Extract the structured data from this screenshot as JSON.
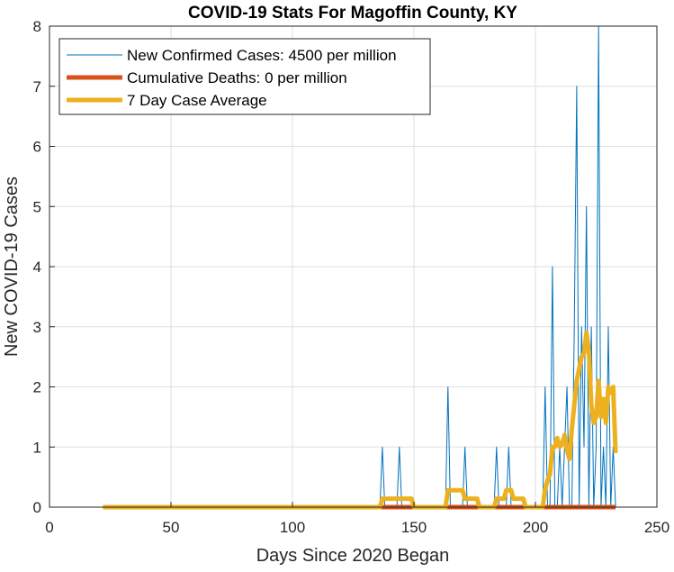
{
  "colors": {
    "new_cases": "#0072BD",
    "deaths": "#D95319",
    "avg": "#EDB120",
    "axis": "#262626",
    "grid": "#dfdfdf"
  },
  "chart_data": {
    "type": "line",
    "title": "COVID-19 Stats For Magoffin County, KY",
    "xlabel": "Days Since 2020 Began",
    "ylabel": "New COVID-19 Cases",
    "xlim": [
      0,
      250
    ],
    "ylim": [
      0,
      8
    ],
    "xticks": [
      0,
      50,
      100,
      150,
      200,
      250
    ],
    "yticks": [
      0,
      1,
      2,
      3,
      4,
      5,
      6,
      7,
      8
    ],
    "grid": true,
    "legend_position": "top-left",
    "series": [
      {
        "name": "New Confirmed Cases: 4500 per million",
        "color_key": "new_cases",
        "style": "thin",
        "points": [
          [
            22,
            0
          ],
          [
            136,
            0
          ],
          [
            137,
            1
          ],
          [
            138,
            0
          ],
          [
            143,
            0
          ],
          [
            144,
            1
          ],
          [
            145,
            0
          ],
          [
            163,
            0
          ],
          [
            164,
            2
          ],
          [
            165,
            0
          ],
          [
            170,
            0
          ],
          [
            171,
            1
          ],
          [
            172,
            0
          ],
          [
            183,
            0
          ],
          [
            184,
            1
          ],
          [
            185,
            0
          ],
          [
            188,
            0
          ],
          [
            189,
            1
          ],
          [
            190,
            0
          ],
          [
            203,
            0
          ],
          [
            204,
            2
          ],
          [
            205,
            0
          ],
          [
            206,
            0
          ],
          [
            207,
            4
          ],
          [
            208,
            0
          ],
          [
            209,
            0
          ],
          [
            210,
            1
          ],
          [
            211,
            0
          ],
          [
            212,
            1
          ],
          [
            213,
            2
          ],
          [
            214,
            0
          ],
          [
            215,
            0
          ],
          [
            216,
            3
          ],
          [
            217,
            7
          ],
          [
            218,
            0
          ],
          [
            219,
            3
          ],
          [
            220,
            1
          ],
          [
            221,
            5
          ],
          [
            222,
            0
          ],
          [
            223,
            3
          ],
          [
            224,
            0
          ],
          [
            225,
            1
          ],
          [
            226,
            8
          ],
          [
            227,
            0
          ],
          [
            228,
            1
          ],
          [
            229,
            0
          ],
          [
            230,
            3
          ],
          [
            231,
            0
          ],
          [
            232,
            1
          ],
          [
            233,
            0
          ]
        ]
      },
      {
        "name": "Cumulative Deaths: 0 per million",
        "color_key": "deaths",
        "style": "thick",
        "points": [
          [
            136,
            0
          ],
          [
            233,
            0
          ]
        ]
      },
      {
        "name": "7 Day Case Average",
        "color_key": "avg",
        "style": "thick",
        "points": [
          [
            22,
            0
          ],
          [
            136,
            0
          ],
          [
            137,
            0.14
          ],
          [
            149,
            0.14
          ],
          [
            150,
            0
          ],
          [
            163,
            0
          ],
          [
            164,
            0.28
          ],
          [
            170,
            0.28
          ],
          [
            171,
            0.14
          ],
          [
            176,
            0.14
          ],
          [
            177,
            0
          ],
          [
            183,
            0
          ],
          [
            184,
            0.14
          ],
          [
            187,
            0.14
          ],
          [
            188,
            0.28
          ],
          [
            190,
            0.28
          ],
          [
            191,
            0.14
          ],
          [
            195,
            0.14
          ],
          [
            196,
            0
          ],
          [
            203,
            0
          ],
          [
            204,
            0.3
          ],
          [
            205,
            0.45
          ],
          [
            206,
            0.55
          ],
          [
            207,
            1.0
          ],
          [
            208,
            1.0
          ],
          [
            209,
            1.15
          ],
          [
            210,
            1.0
          ],
          [
            211,
            1.05
          ],
          [
            212,
            1.2
          ],
          [
            213,
            0.95
          ],
          [
            214,
            0.8
          ],
          [
            215,
            1.3
          ],
          [
            216,
            1.7
          ],
          [
            217,
            2.1
          ],
          [
            218,
            2.3
          ],
          [
            219,
            2.5
          ],
          [
            220,
            2.55
          ],
          [
            221,
            2.9
          ],
          [
            222,
            2.6
          ],
          [
            223,
            1.7
          ],
          [
            224,
            1.4
          ],
          [
            225,
            1.5
          ],
          [
            226,
            2.1
          ],
          [
            227,
            1.5
          ],
          [
            228,
            1.8
          ],
          [
            229,
            1.4
          ],
          [
            230,
            2.0
          ],
          [
            231,
            1.9
          ],
          [
            232,
            2.0
          ],
          [
            233,
            0.9
          ]
        ]
      }
    ]
  }
}
